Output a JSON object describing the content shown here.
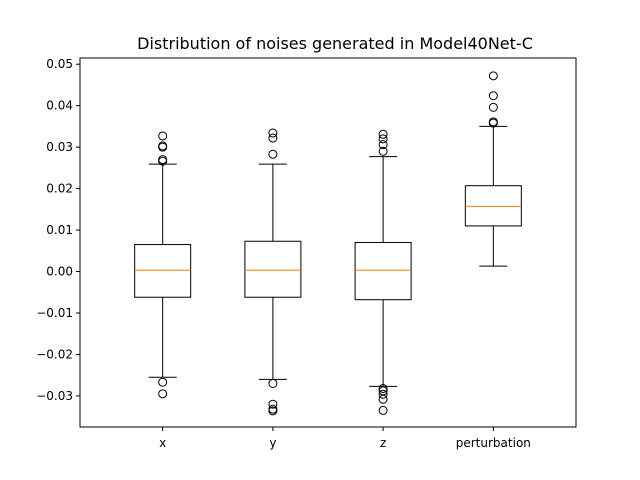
{
  "chart_data": {
    "type": "box",
    "title": "Distribution of noises generated in Model40Net-C",
    "xlabel": "",
    "ylabel": "",
    "ylim": [
      -0.0375,
      0.0515
    ],
    "yticks": [
      -0.03,
      -0.02,
      -0.01,
      0.0,
      0.01,
      0.02,
      0.03,
      0.04,
      0.05
    ],
    "ytick_labels": [
      "−0.03",
      "−0.02",
      "−0.01",
      "0.00",
      "0.01",
      "0.02",
      "0.03",
      "0.04",
      "0.05"
    ],
    "categories": [
      "x",
      "y",
      "z",
      "perturbation"
    ],
    "grid": false,
    "colors": {
      "box": "#000000",
      "median": "#ff7f0e",
      "whisker": "#000000",
      "flier": "#000000"
    },
    "boxes": [
      {
        "label": "x",
        "whisker_low": -0.0255,
        "q1": -0.0062,
        "median": 0.0003,
        "q3": 0.0065,
        "whisker_high": 0.0259,
        "fliers": [
          0.0327,
          0.0303,
          0.03,
          0.027,
          0.0266,
          -0.0267,
          -0.0295
        ]
      },
      {
        "label": "y",
        "whisker_low": -0.026,
        "q1": -0.0062,
        "median": 0.0003,
        "q3": 0.0073,
        "whisker_high": 0.0259,
        "fliers": [
          0.0334,
          0.0322,
          0.0283,
          -0.027,
          -0.032,
          -0.0332,
          -0.0336
        ]
      },
      {
        "label": "z",
        "whisker_low": -0.0277,
        "q1": -0.0068,
        "median": 0.0003,
        "q3": 0.007,
        "whisker_high": 0.0277,
        "fliers": [
          0.0331,
          0.032,
          0.0306,
          0.029,
          -0.0282,
          -0.0288,
          -0.0296,
          -0.0308,
          -0.0335
        ]
      },
      {
        "label": "perturbation",
        "whisker_low": 0.0013,
        "q1": 0.011,
        "median": 0.0157,
        "q3": 0.0207,
        "whisker_high": 0.035,
        "fliers": [
          0.0472,
          0.0424,
          0.0396,
          0.0361,
          0.0358
        ]
      }
    ]
  }
}
